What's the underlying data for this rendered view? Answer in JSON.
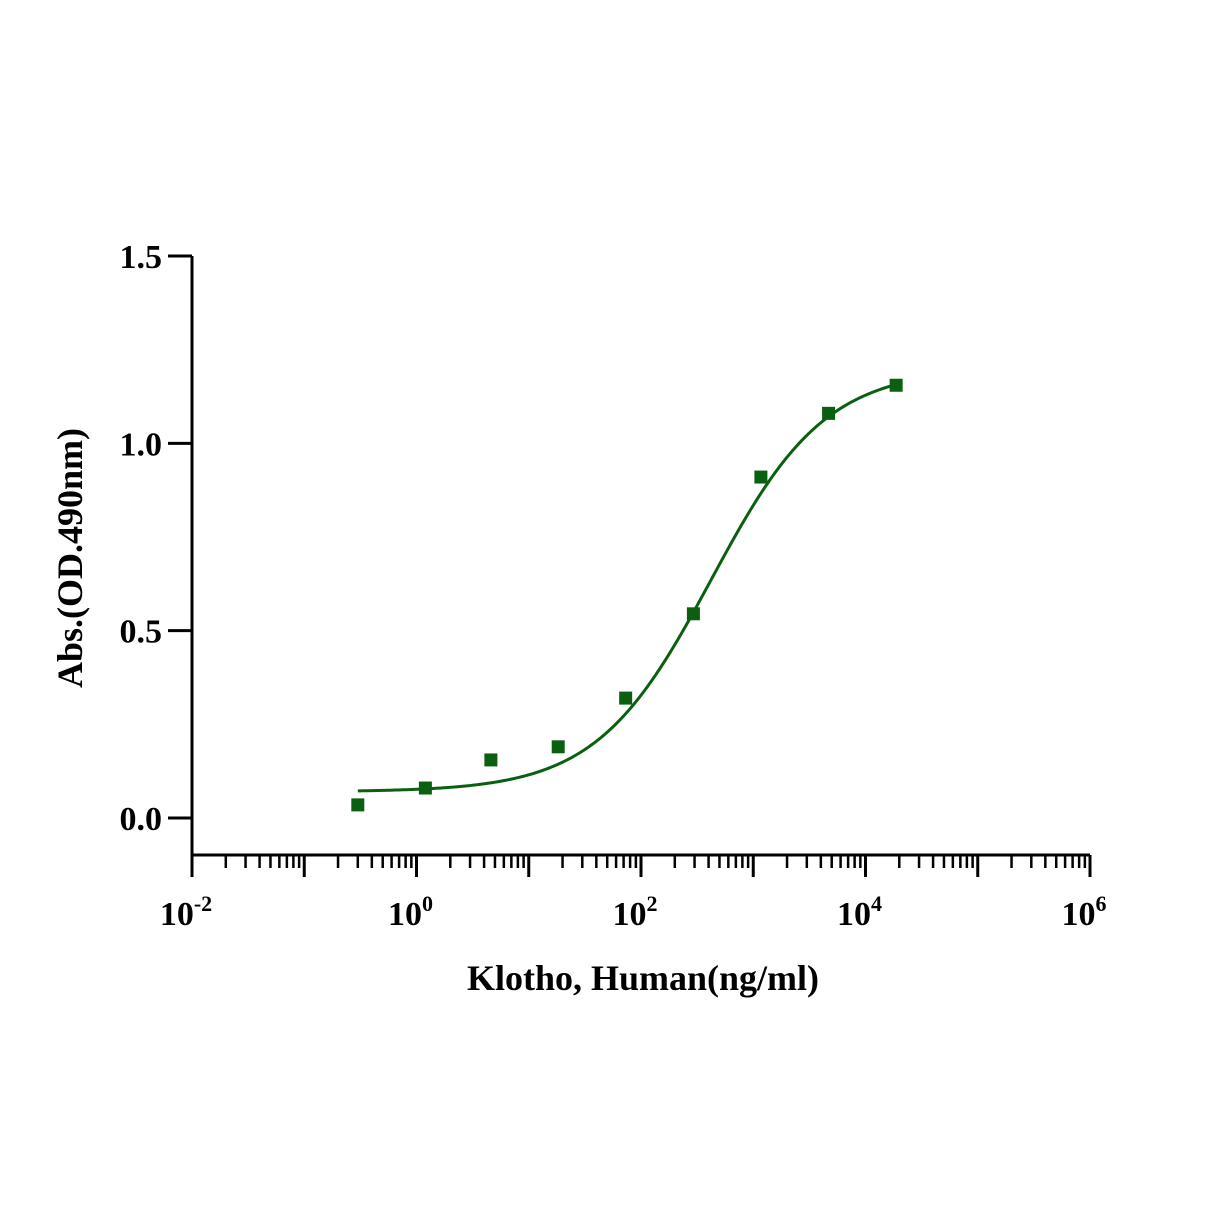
{
  "chart_data": {
    "type": "scatter",
    "title": "",
    "xlabel": "Klotho, Human(ng/ml)",
    "ylabel": "Abs.(OD.490nm)",
    "x_scale": "log",
    "xlim": [
      0.01,
      1000000
    ],
    "ylim": [
      -0.1,
      1.5
    ],
    "x_ticks": [
      {
        "base": "10",
        "exp": "-2",
        "value": 0.01
      },
      {
        "base": "10",
        "exp": "0",
        "value": 1
      },
      {
        "base": "10",
        "exp": "2",
        "value": 100
      },
      {
        "base": "10",
        "exp": "4",
        "value": 10000
      },
      {
        "base": "10",
        "exp": "6",
        "value": 1000000
      }
    ],
    "y_ticks": [
      {
        "label": "0.0",
        "value": 0.0
      },
      {
        "label": "0.5",
        "value": 0.5
      },
      {
        "label": "1.0",
        "value": 1.0
      },
      {
        "label": "1.5",
        "value": 1.5
      }
    ],
    "grid": false,
    "series": [
      {
        "color": "#0a6010",
        "marker": "square",
        "points": [
          {
            "x": 0.3,
            "y": 0.035
          },
          {
            "x": 1.2,
            "y": 0.08
          },
          {
            "x": 4.6,
            "y": 0.155
          },
          {
            "x": 18.3,
            "y": 0.19
          },
          {
            "x": 73,
            "y": 0.32
          },
          {
            "x": 293,
            "y": 0.545
          },
          {
            "x": 1170,
            "y": 0.91
          },
          {
            "x": 4690,
            "y": 1.08
          },
          {
            "x": 18750,
            "y": 1.155
          }
        ]
      }
    ],
    "fit_curve": {
      "type": "4PL",
      "color": "#0a6010",
      "bottom": 0.07,
      "top": 1.2,
      "ec50": 420,
      "hill": 0.85,
      "x_range": [
        0.3,
        18750
      ]
    }
  }
}
